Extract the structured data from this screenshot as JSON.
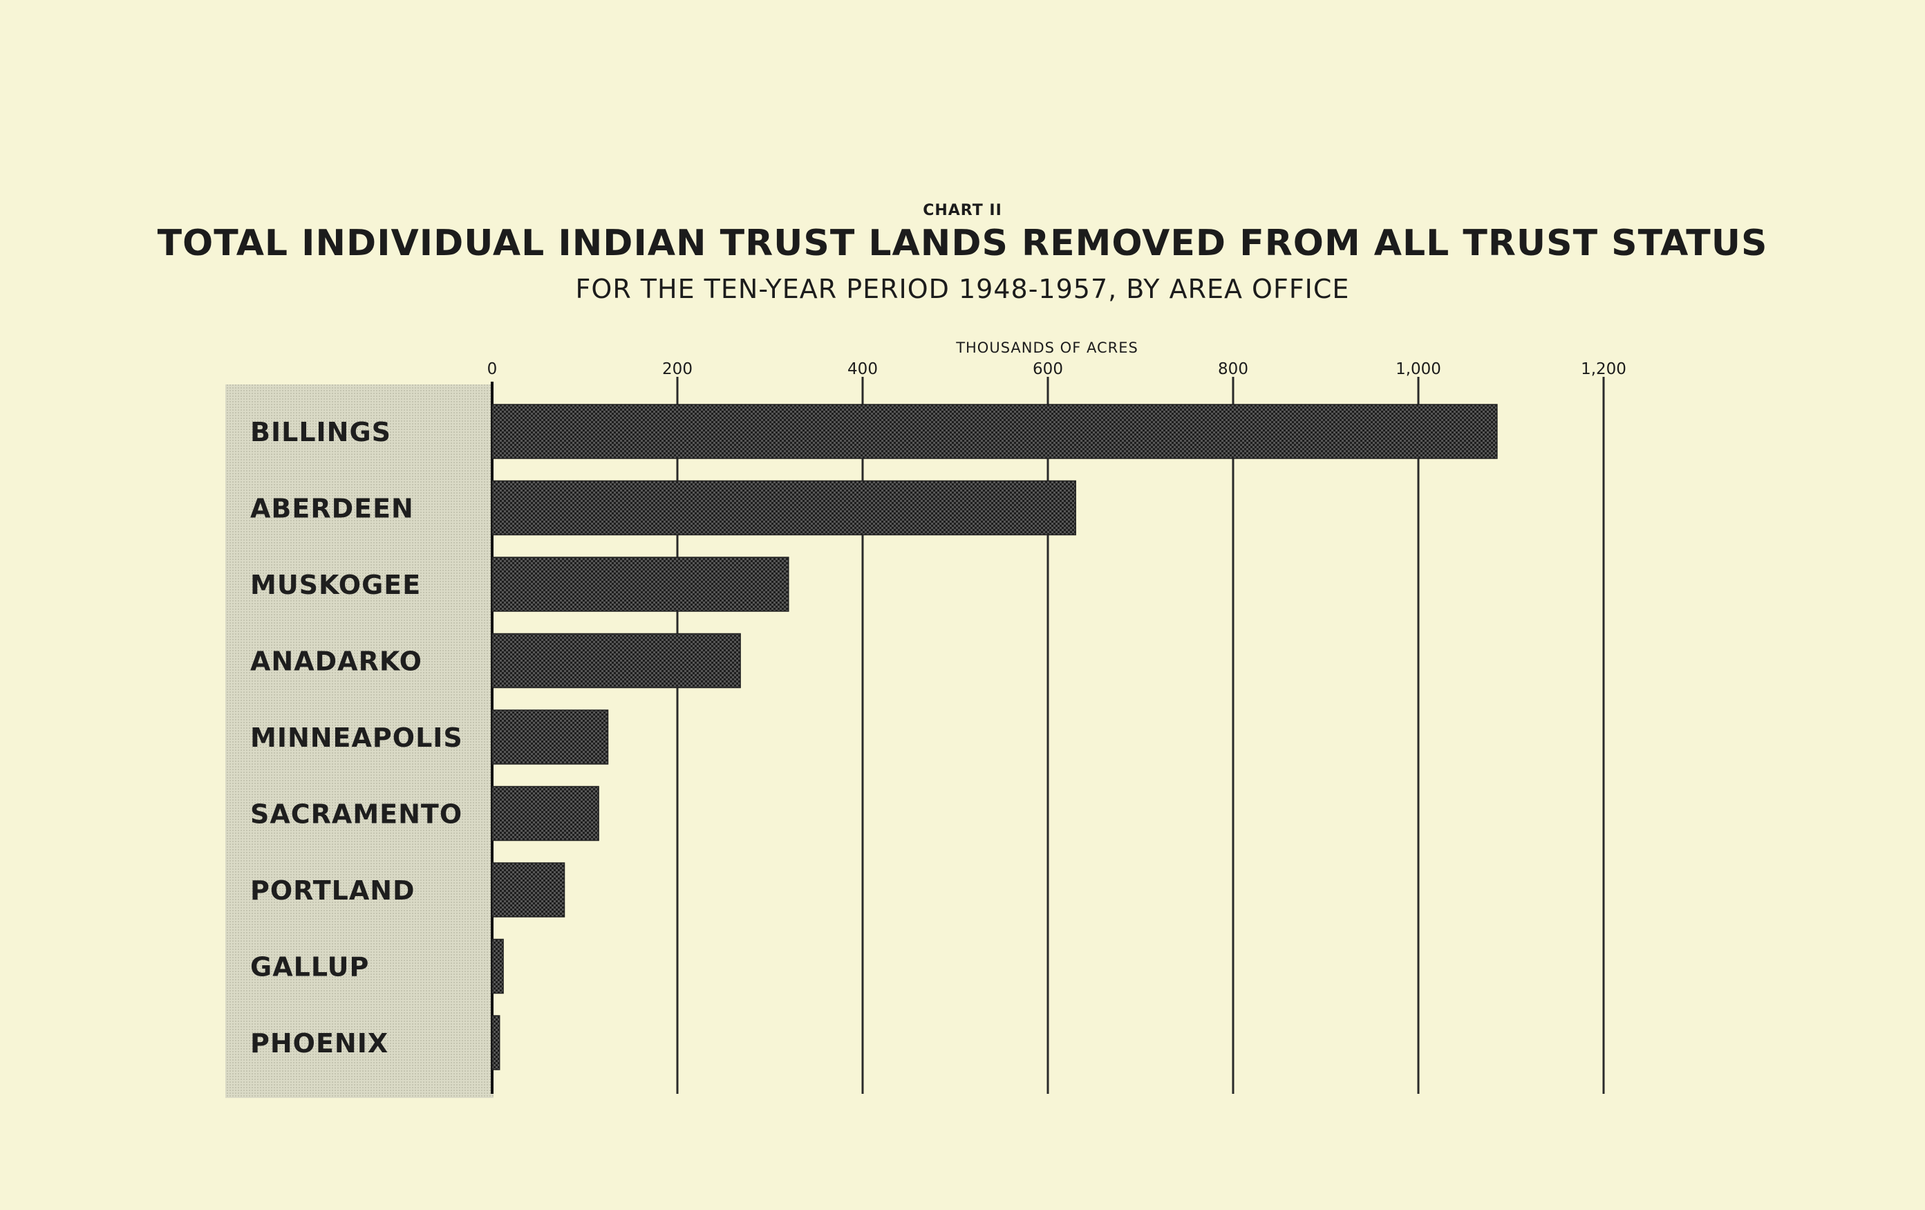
{
  "chart_data": {
    "type": "bar",
    "orientation": "horizontal",
    "chart_label": "CHART II",
    "title": "TOTAL INDIVIDUAL INDIAN TRUST LANDS REMOVED FROM ALL TRUST STATUS",
    "subtitle": "FOR THE TEN-YEAR PERIOD 1948-1957, BY AREA OFFICE",
    "xlabel": "THOUSANDS OF ACRES",
    "ylabel": "",
    "xlim": [
      0,
      1200
    ],
    "xticks": [
      0,
      200,
      400,
      600,
      800,
      1000,
      1200
    ],
    "xtick_labels": [
      "0",
      "200",
      "400",
      "600",
      "800",
      "1,000",
      "1,200"
    ],
    "grid": "vertical lines at each tick",
    "categories": [
      "BILLINGS",
      "ABERDEEN",
      "MUSKOGEE",
      "ANADARKO",
      "MINNEAPOLIS",
      "SACRAMENTO",
      "PORTLAND",
      "GALLUP",
      "PHOENIX"
    ],
    "values": [
      1085,
      630,
      320,
      268,
      125,
      115,
      78,
      12,
      8
    ],
    "colors": {
      "background": "#f7f5d6",
      "bar": "#3a3a3a",
      "label_panel": "#d2d2bf",
      "grid": "#2a2a2a"
    }
  }
}
